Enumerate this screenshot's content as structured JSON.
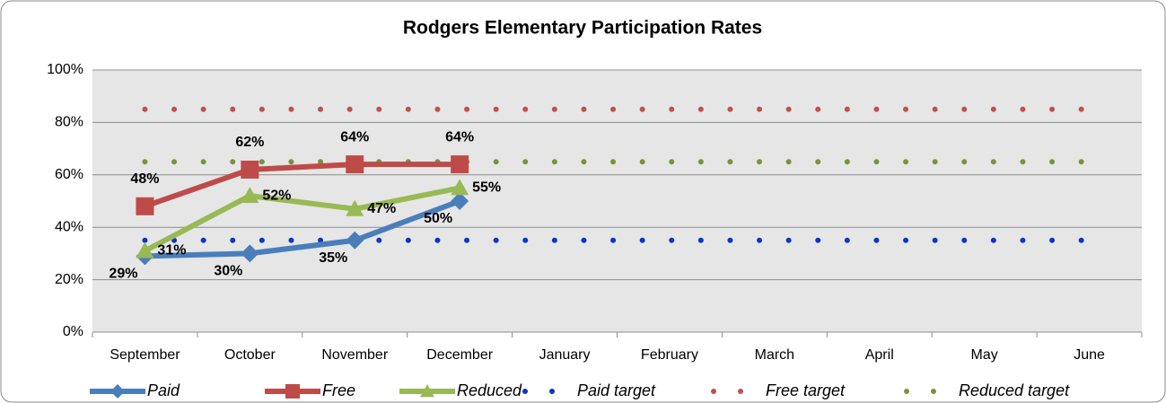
{
  "chart_data": {
    "type": "line",
    "title": "Rodgers Elementary Participation Rates",
    "categories": [
      "September",
      "October",
      "November",
      "December",
      "January",
      "February",
      "March",
      "April",
      "May",
      "June"
    ],
    "series": [
      {
        "name": "Paid",
        "color": "#4a7ebb",
        "marker": "diamond",
        "values": [
          29,
          30,
          35,
          50,
          null,
          null,
          null,
          null,
          null,
          null
        ],
        "value_labels": [
          "29%",
          "30%",
          "35%",
          "50%",
          null,
          null,
          null,
          null,
          null,
          null
        ]
      },
      {
        "name": "Free",
        "color": "#be4b48",
        "marker": "square",
        "values": [
          48,
          62,
          64,
          64,
          null,
          null,
          null,
          null,
          null,
          null
        ],
        "value_labels": [
          "48%",
          "62%",
          "64%",
          "64%",
          null,
          null,
          null,
          null,
          null,
          null
        ]
      },
      {
        "name": "Reduced",
        "color": "#98b954",
        "marker": "triangle",
        "values": [
          31,
          52,
          47,
          55,
          null,
          null,
          null,
          null,
          null,
          null
        ],
        "value_labels": [
          "31%",
          "52%",
          "47%",
          "55%",
          null,
          null,
          null,
          null,
          null,
          null
        ]
      },
      {
        "name": "Paid target",
        "color": "#0b34c8",
        "style": "dotted",
        "values": [
          35,
          35,
          35,
          35,
          35,
          35,
          35,
          35,
          35,
          35
        ]
      },
      {
        "name": "Free target",
        "color": "#c0504d",
        "style": "dotted",
        "values": [
          85,
          85,
          85,
          85,
          85,
          85,
          85,
          85,
          85,
          85
        ]
      },
      {
        "name": "Reduced target",
        "color": "#77933c",
        "style": "dotted",
        "values": [
          65,
          65,
          65,
          65,
          65,
          65,
          65,
          65,
          65,
          65
        ]
      }
    ],
    "ylim": [
      0,
      100
    ],
    "yticks": [
      {
        "value": 0,
        "label": "0%"
      },
      {
        "value": 20,
        "label": "20%"
      },
      {
        "value": 40,
        "label": "40%"
      },
      {
        "value": 60,
        "label": "60%"
      },
      {
        "value": 80,
        "label": "80%"
      },
      {
        "value": 100,
        "label": "100%"
      }
    ],
    "grid": true,
    "legend": "bottom"
  }
}
